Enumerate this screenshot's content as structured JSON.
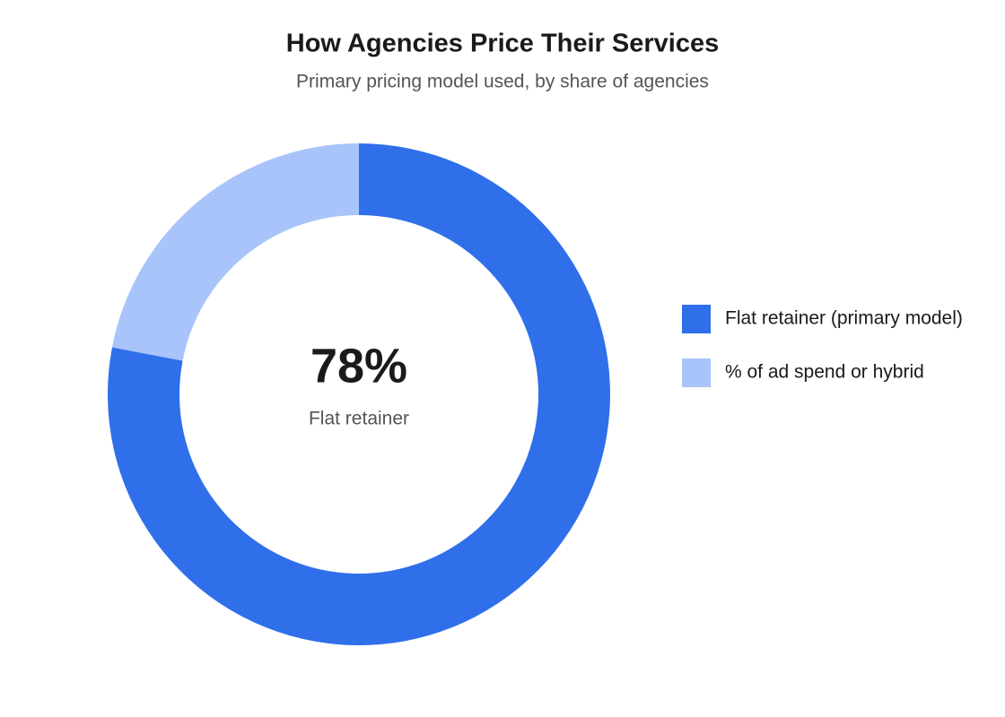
{
  "chart_data": {
    "type": "donut",
    "title": "How Agencies Price Their Services",
    "subtitle": "Primary pricing model used, by share of agencies",
    "categories": [
      "Flat retainer (primary model)",
      "% of ad spend or hybrid"
    ],
    "values": [
      78,
      22
    ],
    "value_labels": [
      "78%",
      null
    ],
    "colors": [
      "#2f6fea",
      "#a8c4fa"
    ],
    "center_caption": "Flat retainer",
    "legend": "right"
  }
}
